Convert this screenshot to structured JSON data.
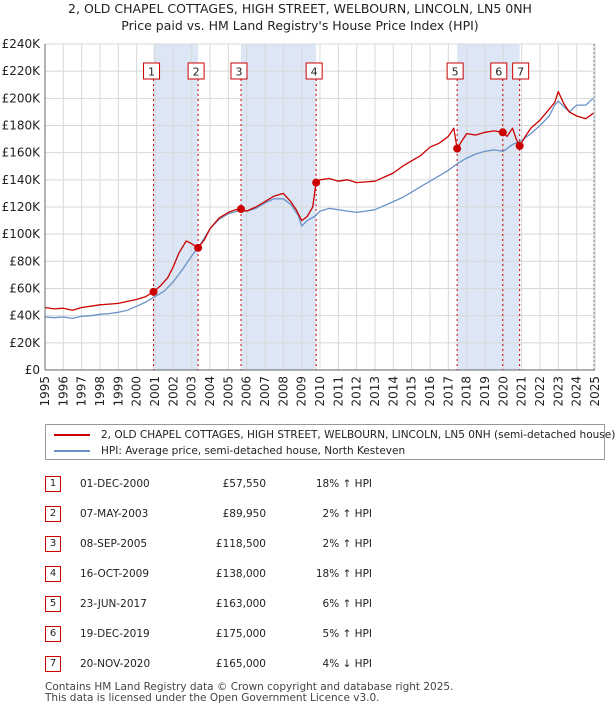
{
  "title_line1": "2, OLD CHAPEL COTTAGES, HIGH STREET, WELBOURN, LINCOLN, LN5 0NH",
  "title_line2": "Price paid vs. HM Land Registry's House Price Index (HPI)",
  "colors": {
    "price_line": "#cc0000",
    "hpi_line": "#6a93c8",
    "shade": "#dce6f5",
    "marker_border": "#cc0000",
    "vline": "#cc0000"
  },
  "legend": {
    "price_label": "2, OLD CHAPEL COTTAGES, HIGH STREET, WELBOURN, LINCOLN, LN5 0NH (semi-detached house)",
    "hpi_label": "HPI: Average price, semi-detached house, North Kesteven"
  },
  "sales": [
    {
      "num": "1",
      "date": "01-DEC-2000",
      "price": "£57,550",
      "hpi": "18% ↑ HPI"
    },
    {
      "num": "2",
      "date": "07-MAY-2003",
      "price": "£89,950",
      "hpi": "2% ↑ HPI"
    },
    {
      "num": "3",
      "date": "08-SEP-2005",
      "price": "£118,500",
      "hpi": "2% ↑ HPI"
    },
    {
      "num": "4",
      "date": "16-OCT-2009",
      "price": "£138,000",
      "hpi": "18% ↑ HPI"
    },
    {
      "num": "5",
      "date": "23-JUN-2017",
      "price": "£163,000",
      "hpi": "6% ↑ HPI"
    },
    {
      "num": "6",
      "date": "19-DEC-2019",
      "price": "£175,000",
      "hpi": "5% ↑ HPI"
    },
    {
      "num": "7",
      "date": "20-NOV-2020",
      "price": "£165,000",
      "hpi": "4% ↓ HPI"
    }
  ],
  "footer_line1": "Contains HM Land Registry data © Crown copyright and database right 2025.",
  "footer_line2": "This data is licensed under the Open Government Licence v3.0.",
  "chart_data": {
    "type": "line",
    "xlim": [
      1995,
      2025
    ],
    "ylim": [
      0,
      240000
    ],
    "y_ticks": [
      0,
      20000,
      40000,
      60000,
      80000,
      100000,
      120000,
      140000,
      160000,
      180000,
      200000,
      220000,
      240000
    ],
    "y_tick_labels": [
      "£0",
      "£20K",
      "£40K",
      "£60K",
      "£80K",
      "£100K",
      "£120K",
      "£140K",
      "£160K",
      "£180K",
      "£200K",
      "£220K",
      "£240K"
    ],
    "x_ticks": [
      1995,
      1996,
      1997,
      1998,
      1999,
      2000,
      2001,
      2002,
      2003,
      2004,
      2005,
      2006,
      2007,
      2008,
      2009,
      2010,
      2011,
      2012,
      2013,
      2014,
      2015,
      2016,
      2017,
      2018,
      2019,
      2020,
      2021,
      2022,
      2023,
      2024,
      2025
    ],
    "grid": true,
    "shaded_ranges": [
      [
        2000.92,
        2003.35
      ],
      [
        2005.69,
        2009.79
      ],
      [
        2017.48,
        2020.89
      ],
      [
        2024.9,
        2025
      ]
    ],
    "sale_markers": [
      {
        "label": "1",
        "x": 2000.92,
        "y": 57550
      },
      {
        "label": "2",
        "x": 2003.35,
        "y": 89950
      },
      {
        "label": "3",
        "x": 2005.69,
        "y": 118500
      },
      {
        "label": "4",
        "x": 2009.79,
        "y": 138000
      },
      {
        "label": "5",
        "x": 2017.48,
        "y": 163000
      },
      {
        "label": "6",
        "x": 2019.97,
        "y": 175000
      },
      {
        "label": "7",
        "x": 2020.89,
        "y": 165000
      }
    ],
    "series": [
      {
        "name": "2, OLD CHAPEL COTTAGES, HIGH STREET, WELBOURN, LINCOLN, LN5 0NH (semi-detached house)",
        "x": [
          1995,
          1995.5,
          1996,
          1996.5,
          1997,
          1997.5,
          1998,
          1998.5,
          1999,
          1999.5,
          2000,
          2000.5,
          2000.92,
          2001.3,
          2001.7,
          2002,
          2002.3,
          2002.7,
          2003,
          2003.35,
          2003.7,
          2004,
          2004.5,
          2005,
          2005.4,
          2005.69,
          2006,
          2006.5,
          2007,
          2007.5,
          2008,
          2008.4,
          2008.7,
          2009,
          2009.3,
          2009.6,
          2009.79,
          2010,
          2010.5,
          2011,
          2011.5,
          2012,
          2012.5,
          2013,
          2013.5,
          2014,
          2014.5,
          2015,
          2015.5,
          2016,
          2016.5,
          2017,
          2017.3,
          2017.48,
          2017.8,
          2018,
          2018.5,
          2019,
          2019.5,
          2019.97,
          2020.2,
          2020.5,
          2020.7,
          2020.89,
          2021.2,
          2021.5,
          2022,
          2022.5,
          2022.8,
          2023,
          2023.3,
          2023.6,
          2024,
          2024.5,
          2024.9
        ],
        "y": [
          46000,
          45000,
          45500,
          44000,
          46000,
          47000,
          48000,
          48500,
          49000,
          50500,
          52000,
          54000,
          57550,
          62000,
          68000,
          76000,
          86000,
          95000,
          93000,
          89950,
          96000,
          104000,
          112000,
          116000,
          118000,
          118500,
          117000,
          120000,
          124000,
          128000,
          130000,
          124000,
          118000,
          110000,
          113000,
          120000,
          138000,
          140000,
          141000,
          139000,
          140000,
          138000,
          138500,
          139000,
          142000,
          145000,
          150000,
          154000,
          158000,
          164000,
          167000,
          172000,
          178000,
          163000,
          170000,
          174000,
          173000,
          175000,
          176000,
          175000,
          172000,
          178000,
          170000,
          165000,
          172000,
          178000,
          184000,
          192000,
          197000,
          205000,
          196000,
          190000,
          187000,
          185000,
          189000
        ]
      },
      {
        "name": "HPI: Average price, semi-detached house, North Kesteven",
        "x": [
          1995,
          1995.5,
          1996,
          1996.5,
          1997,
          1997.5,
          1998,
          1998.5,
          1999,
          1999.5,
          2000,
          2000.5,
          2001,
          2001.5,
          2002,
          2002.5,
          2003,
          2003.5,
          2004,
          2004.5,
          2005,
          2005.5,
          2006,
          2006.5,
          2007,
          2007.5,
          2008,
          2008.4,
          2008.8,
          2009,
          2009.3,
          2009.7,
          2010,
          2010.5,
          2011,
          2011.5,
          2012,
          2012.5,
          2013,
          2013.5,
          2014,
          2014.5,
          2015,
          2015.5,
          2016,
          2016.5,
          2017,
          2017.5,
          2018,
          2018.5,
          2019,
          2019.5,
          2020,
          2020.5,
          2021,
          2021.5,
          2022,
          2022.5,
          2022.8,
          2023,
          2023.3,
          2023.6,
          2024,
          2024.5,
          2024.9
        ],
        "y": [
          39000,
          38500,
          39000,
          38000,
          39500,
          40000,
          41000,
          41500,
          42500,
          44000,
          47000,
          50000,
          54000,
          58000,
          65000,
          74000,
          84000,
          93000,
          104000,
          111000,
          115000,
          117000,
          117000,
          119000,
          123000,
          126000,
          126000,
          122000,
          114000,
          106000,
          110000,
          113000,
          117000,
          119000,
          118000,
          117000,
          116000,
          117000,
          118000,
          121000,
          124000,
          127000,
          131000,
          135000,
          139000,
          143000,
          147000,
          152000,
          156000,
          159000,
          161000,
          162000,
          161000,
          166000,
          169000,
          174000,
          180000,
          187000,
          195000,
          198000,
          194000,
          190000,
          195000,
          195000,
          200000
        ]
      }
    ]
  }
}
